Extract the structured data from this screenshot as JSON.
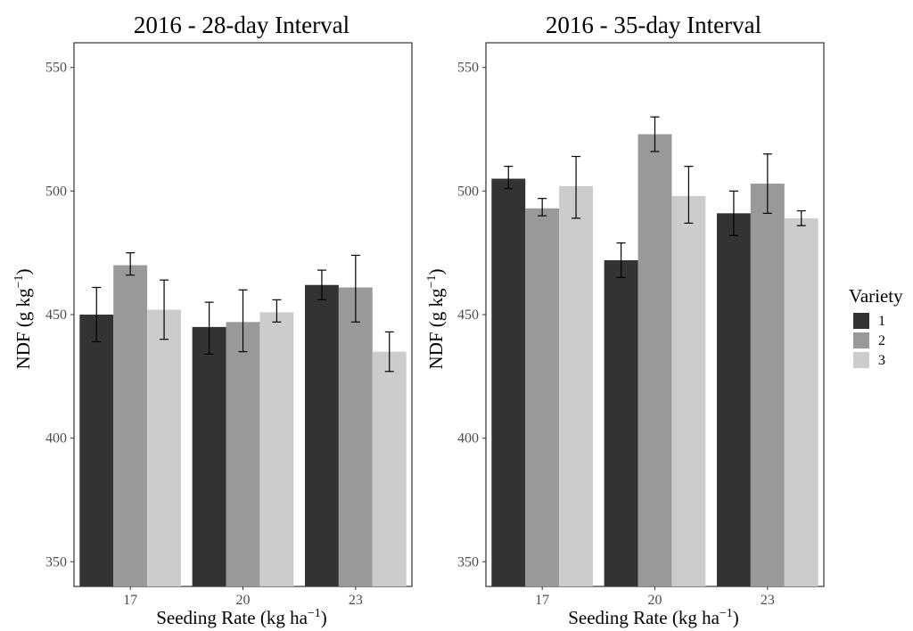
{
  "chart_data": [
    {
      "type": "bar",
      "title": "2016 - 28-day Interval",
      "xlabel": "Seeding Rate (kg ha",
      "xlabel_sup": "−1",
      "xlabel_end": ")",
      "ylabel": "NDF (g kg",
      "ylabel_sup": "−1",
      "ylabel_end": ")",
      "categories": [
        "17",
        "20",
        "23"
      ],
      "ylim": [
        340,
        560
      ],
      "yticks": [
        350,
        400,
        450,
        500,
        550
      ],
      "ytick_labels": [
        "350",
        "400",
        "450",
        "500",
        "550"
      ],
      "grid": false,
      "series": [
        {
          "name": "1",
          "values": [
            450,
            445,
            462
          ],
          "err_low": [
            439,
            434,
            456
          ],
          "err_high": [
            461,
            455,
            468
          ]
        },
        {
          "name": "2",
          "values": [
            470,
            447,
            461
          ],
          "err_low": [
            466,
            435,
            447
          ],
          "err_high": [
            475,
            460,
            474
          ]
        },
        {
          "name": "3",
          "values": [
            452,
            451,
            435
          ],
          "err_low": [
            440,
            447,
            427
          ],
          "err_high": [
            464,
            456,
            443
          ]
        }
      ]
    },
    {
      "type": "bar",
      "title": "2016 - 35-day Interval",
      "xlabel": "Seeding Rate (kg ha",
      "xlabel_sup": "−1",
      "xlabel_end": ")",
      "ylabel": "NDF (g kg",
      "ylabel_sup": "−1",
      "ylabel_end": ")",
      "categories": [
        "17",
        "20",
        "23"
      ],
      "ylim": [
        340,
        560
      ],
      "yticks": [
        350,
        400,
        450,
        500,
        550
      ],
      "ytick_labels": [
        "350",
        "400",
        "450",
        "500",
        "550"
      ],
      "grid": false,
      "series": [
        {
          "name": "1",
          "values": [
            505,
            472,
            491
          ],
          "err_low": [
            501,
            465,
            482
          ],
          "err_high": [
            510,
            479,
            500
          ]
        },
        {
          "name": "2",
          "values": [
            493,
            523,
            503
          ],
          "err_low": [
            490,
            516,
            491
          ],
          "err_high": [
            497,
            530,
            515
          ]
        },
        {
          "name": "3",
          "values": [
            502,
            498,
            489
          ],
          "err_low": [
            489,
            487,
            486
          ],
          "err_high": [
            514,
            510,
            492
          ]
        }
      ]
    }
  ],
  "legend": {
    "title": "Variety",
    "placement": "right",
    "items": [
      {
        "label": "1",
        "color": "#333333"
      },
      {
        "label": "2",
        "color": "#999999"
      },
      {
        "label": "3",
        "color": "#cccccc"
      }
    ]
  }
}
